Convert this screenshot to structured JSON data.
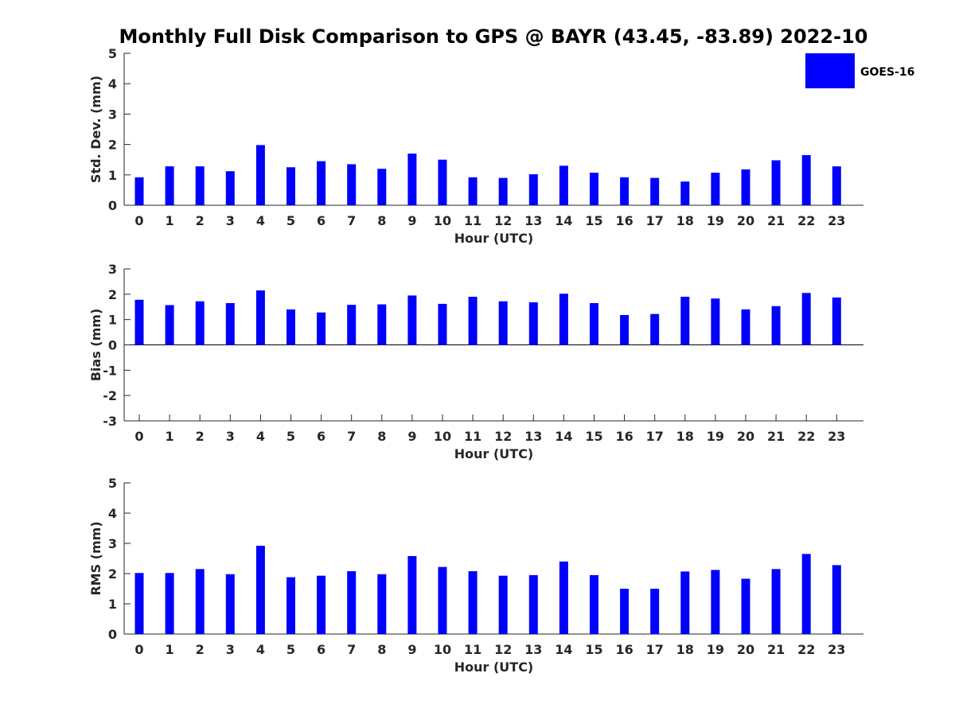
{
  "title": "Monthly Full Disk Comparison to GPS @ BAYR (43.45, -83.89) 2022-10",
  "legend": {
    "label": "GOES-16",
    "color": "#0000ff"
  },
  "chart_data": [
    {
      "type": "bar",
      "ylabel": "Std. Dev. (mm)",
      "xlabel": "Hour (UTC)",
      "ylim": [
        0,
        5
      ],
      "yticks": [
        0,
        1,
        2,
        3,
        4,
        5
      ],
      "categories": [
        "0",
        "1",
        "2",
        "3",
        "4",
        "5",
        "6",
        "7",
        "8",
        "9",
        "10",
        "11",
        "12",
        "13",
        "14",
        "15",
        "16",
        "17",
        "18",
        "19",
        "20",
        "21",
        "22",
        "23"
      ],
      "series": [
        {
          "name": "GOES-16",
          "color": "#0000ff",
          "values": [
            0.92,
            1.28,
            1.28,
            1.12,
            1.98,
            1.25,
            1.45,
            1.35,
            1.2,
            1.7,
            1.5,
            0.92,
            0.9,
            1.02,
            1.3,
            1.07,
            0.92,
            0.9,
            0.78,
            1.07,
            1.18,
            1.48,
            1.65,
            1.28
          ]
        }
      ],
      "grid": false
    },
    {
      "type": "bar",
      "ylabel": "Bias (mm)",
      "xlabel": "Hour (UTC)",
      "ylim": [
        -3,
        3
      ],
      "yticks": [
        -3,
        -2,
        -1,
        0,
        1,
        2,
        3
      ],
      "categories": [
        "0",
        "1",
        "2",
        "3",
        "4",
        "5",
        "6",
        "7",
        "8",
        "9",
        "10",
        "11",
        "12",
        "13",
        "14",
        "15",
        "16",
        "17",
        "18",
        "19",
        "20",
        "21",
        "22",
        "23"
      ],
      "series": [
        {
          "name": "GOES-16",
          "color": "#0000ff",
          "values": [
            1.78,
            1.57,
            1.72,
            1.65,
            2.15,
            1.4,
            1.28,
            1.58,
            1.6,
            1.95,
            1.62,
            1.9,
            1.72,
            1.68,
            2.02,
            1.65,
            1.18,
            1.22,
            1.9,
            1.83,
            1.4,
            1.53,
            2.05,
            1.87
          ]
        }
      ],
      "grid": false
    },
    {
      "type": "bar",
      "ylabel": "RMS (mm)",
      "xlabel": "Hour (UTC)",
      "ylim": [
        0,
        5
      ],
      "yticks": [
        0,
        1,
        2,
        3,
        4,
        5
      ],
      "categories": [
        "0",
        "1",
        "2",
        "3",
        "4",
        "5",
        "6",
        "7",
        "8",
        "9",
        "10",
        "11",
        "12",
        "13",
        "14",
        "15",
        "16",
        "17",
        "18",
        "19",
        "20",
        "21",
        "22",
        "23"
      ],
      "series": [
        {
          "name": "GOES-16",
          "color": "#0000ff",
          "values": [
            2.02,
            2.02,
            2.15,
            1.98,
            2.92,
            1.88,
            1.93,
            2.08,
            1.98,
            2.58,
            2.22,
            2.08,
            1.93,
            1.95,
            2.4,
            1.95,
            1.5,
            1.5,
            2.07,
            2.12,
            1.83,
            2.15,
            2.65,
            2.28
          ]
        }
      ],
      "grid": false
    }
  ]
}
